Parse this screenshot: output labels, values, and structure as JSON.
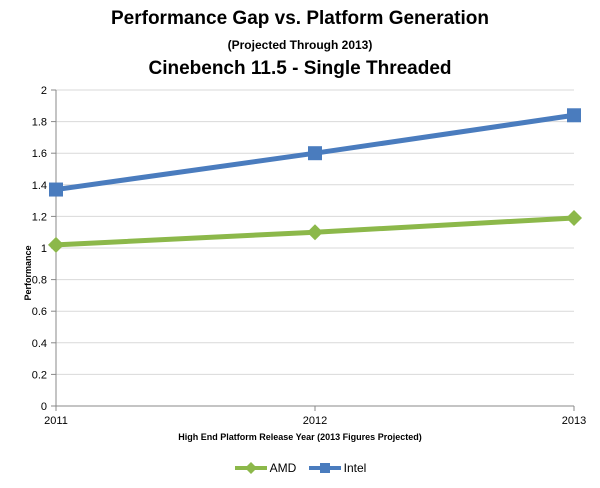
{
  "chart_data": {
    "type": "line",
    "title": "Performance Gap vs. Platform Generation",
    "subtitle": "(Projected Through 2013)",
    "subtitle2": "Cinebench 11.5 - Single Threaded",
    "xlabel": "High End Platform Release Year (2013 Figures Projected)",
    "ylabel": "Performance",
    "categories": [
      "2011",
      "2012",
      "2013"
    ],
    "ylim": [
      0,
      2
    ],
    "yticks": [
      "0",
      "0.2",
      "0.4",
      "0.6",
      "0.8",
      "1",
      "1.2",
      "1.4",
      "1.6",
      "1.8",
      "2"
    ],
    "grid": true,
    "legend_position": "bottom",
    "series": [
      {
        "name": "AMD",
        "values": [
          1.02,
          1.1,
          1.19
        ],
        "color": "#8cb84a",
        "marker": "diamond"
      },
      {
        "name": "Intel",
        "values": [
          1.37,
          1.6,
          1.84
        ],
        "color": "#4a7cbe",
        "marker": "square"
      }
    ]
  }
}
